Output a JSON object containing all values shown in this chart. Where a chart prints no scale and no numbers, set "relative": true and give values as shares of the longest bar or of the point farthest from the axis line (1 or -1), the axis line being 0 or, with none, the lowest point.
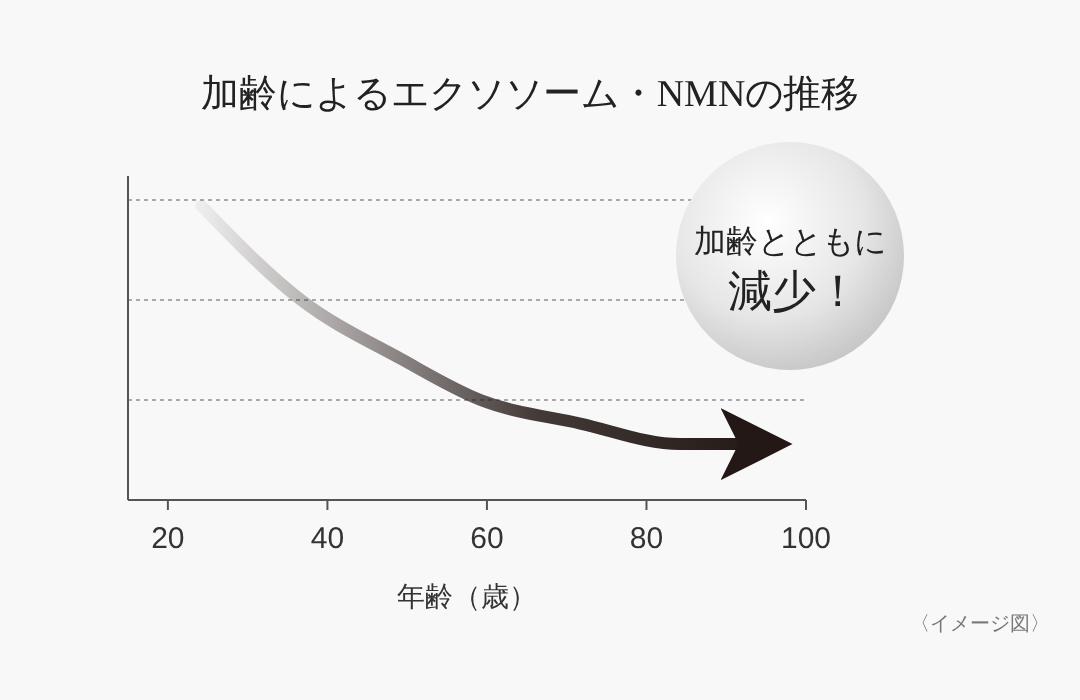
{
  "chart_data": {
    "type": "line",
    "title": "加齢によるエクソソーム・NMNの推移",
    "xlabel": "年齢（歳）",
    "relative": true,
    "xlim": [
      15,
      100
    ],
    "xticks": [
      20,
      40,
      60,
      80,
      100
    ],
    "series": [
      {
        "color": "#231815",
        "x": [
          24.2,
          36.7,
          49.2,
          59.2,
          71.7,
          84.2,
          94.7
        ],
        "values": [
          1,
          0.68,
          0.48,
          0.34,
          0.26,
          0.19,
          0.19
        ]
      }
    ],
    "ref_lines": [
      {
        "axis": "y",
        "value": 1.02,
        "color": "#aaaaaa",
        "line_style": "dotted"
      },
      {
        "axis": "y",
        "value": 0.68,
        "color": "#aaaaaa",
        "line_style": "dotted"
      },
      {
        "axis": "y",
        "value": 0.34,
        "color": "#aaaaaa",
        "line_style": "dotted"
      }
    ],
    "annotations": [
      "加齢とともに",
      "減少！",
      "〈イメージ図〉"
    ],
    "marker": "none",
    "line_style": "solid",
    "grid": false
  }
}
